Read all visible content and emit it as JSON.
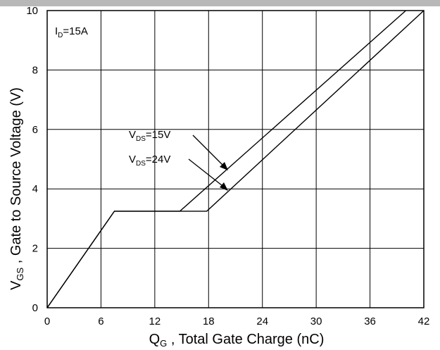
{
  "chart_data": {
    "type": "line",
    "xlabel": "Q_G , Total Gate Charge (nC)",
    "xlabel_main": "Q",
    "xlabel_sub": "G",
    "xlabel_rest": " , Total Gate Charge (nC)",
    "ylabel": "V_GS , Gate to Source Voltage (V)",
    "ylabel_main": "V",
    "ylabel_sub": "GS",
    "ylabel_rest": " , Gate to Source Voltage (V)",
    "xlim": [
      0,
      42
    ],
    "ylim": [
      0,
      10
    ],
    "xticks": [
      "0",
      "6",
      "12",
      "18",
      "24",
      "30",
      "36",
      "42"
    ],
    "yticks": [
      "0",
      "2",
      "4",
      "6",
      "8",
      "10"
    ],
    "grid": true,
    "condition": {
      "main": "I",
      "sub": "D",
      "rest": "=15A"
    },
    "series": [
      {
        "name": "V_DS=15V",
        "label_main": "V",
        "label_sub": "DS",
        "label_rest": "=15V",
        "x": [
          0,
          7.5,
          14.8,
          40.0
        ],
        "y": [
          0,
          3.25,
          3.25,
          10
        ]
      },
      {
        "name": "V_DS=24V",
        "label_main": "V",
        "label_sub": "DS",
        "label_rest": "=24V",
        "x": [
          0,
          7.5,
          17.8,
          42.0
        ],
        "y": [
          0,
          3.25,
          3.25,
          10
        ]
      }
    ],
    "colors": {
      "line": "#000000",
      "grid": "#000000",
      "topbar": "#b8b8b8"
    }
  }
}
